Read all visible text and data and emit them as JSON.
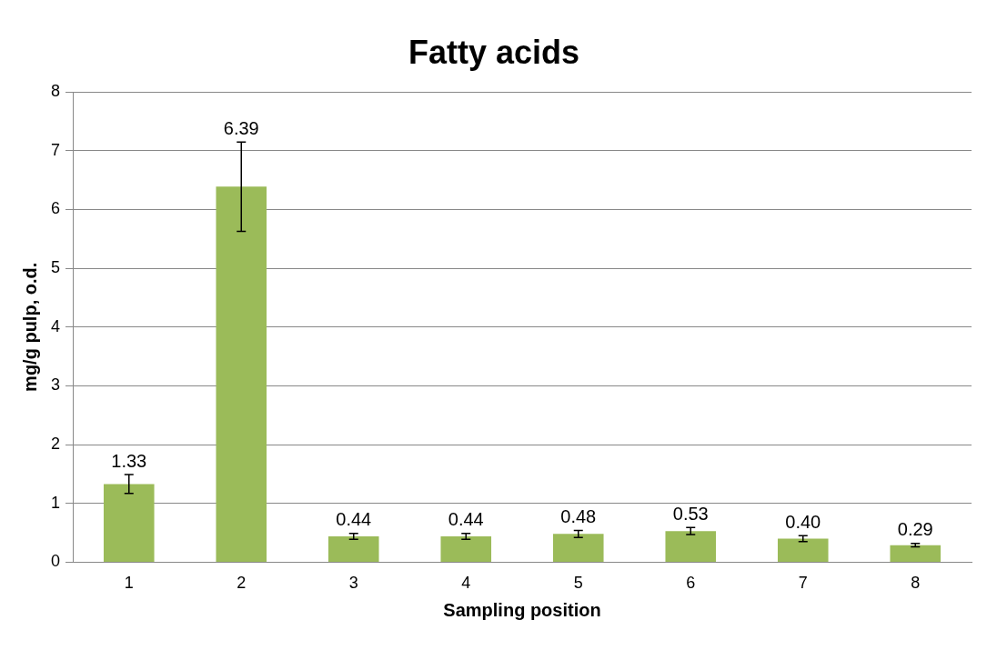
{
  "chart_data": {
    "type": "bar",
    "title": "Fatty acids",
    "xlabel": "Sampling position",
    "ylabel": "mg/g pulp, o.d.",
    "categories": [
      "1",
      "2",
      "3",
      "4",
      "5",
      "6",
      "7",
      "8"
    ],
    "values": [
      1.33,
      6.39,
      0.44,
      0.44,
      0.48,
      0.53,
      0.4,
      0.29
    ],
    "errors": [
      0.16,
      0.76,
      0.05,
      0.05,
      0.06,
      0.06,
      0.05,
      0.03
    ],
    "value_labels": [
      "1.33",
      "6.39",
      "0.44",
      "0.44",
      "0.48",
      "0.53",
      "0.40",
      "0.29"
    ],
    "color": "#9bbb59",
    "ylim": [
      0,
      8
    ],
    "yticks": [
      0,
      1,
      2,
      3,
      4,
      5,
      6,
      7,
      8
    ],
    "grid": "y",
    "legend": false
  }
}
